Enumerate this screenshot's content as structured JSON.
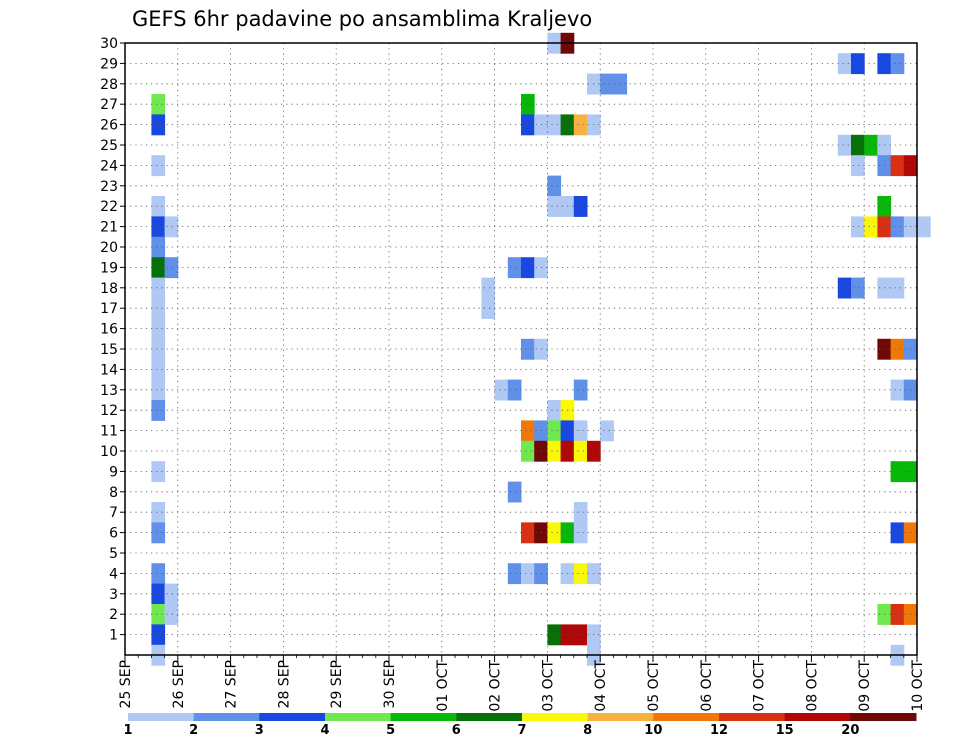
{
  "chart_data": {
    "type": "heatmap",
    "title": "GEFS 6hr padavine po ansamblima Kraljevo",
    "xlabel": "",
    "ylabel": "",
    "x_ticks": [
      "25 SEP",
      "26 SEP",
      "27 SEP",
      "28 SEP",
      "29 SEP",
      "30 SEP",
      "01 OCT",
      "02 OCT",
      "03 OCT",
      "04 OCT",
      "05 OCT",
      "06 OCT",
      "07 OCT",
      "08 OCT",
      "09 OCT",
      "10 OCT"
    ],
    "xlim_days": [
      0,
      15
    ],
    "ylim": [
      0,
      30
    ],
    "y_ticks": [
      1,
      2,
      3,
      4,
      5,
      6,
      7,
      8,
      9,
      10,
      11,
      12,
      13,
      14,
      15,
      16,
      17,
      18,
      19,
      20,
      21,
      22,
      23,
      24,
      25,
      26,
      27,
      28,
      29,
      30
    ],
    "time_step_hours": 6,
    "grid": true,
    "colorbar": {
      "labels": [
        "1",
        "2",
        "3",
        "4",
        "5",
        "6",
        "7",
        "8",
        "10",
        "12",
        "15",
        "20"
      ],
      "label_positions": [
        0,
        1,
        2,
        3,
        4,
        5,
        6,
        7,
        8,
        9,
        10,
        11
      ],
      "colors": [
        "#b0c8f4",
        "#6090e8",
        "#1848e0",
        "#70e850",
        "#08b808",
        "#087008",
        "#f8f808",
        "#f8b040",
        "#f07808",
        "#d83010",
        "#b00808",
        "#700808"
      ]
    },
    "cells_format": "member, step (6 h intervals from 25 SEP 00Z), class index into colorbar.colors",
    "cells": [
      [
        30,
        32,
        0
      ],
      [
        30,
        33,
        11
      ],
      [
        29,
        54,
        0
      ],
      [
        29,
        55,
        2
      ],
      [
        29,
        57,
        2
      ],
      [
        29,
        58,
        1
      ],
      [
        28,
        35,
        0
      ],
      [
        28,
        36,
        1
      ],
      [
        28,
        37,
        1
      ],
      [
        27,
        2,
        3
      ],
      [
        27,
        30,
        4
      ],
      [
        27,
        79,
        0
      ],
      [
        27,
        80,
        0
      ],
      [
        27,
        81,
        8
      ],
      [
        26,
        2,
        2
      ],
      [
        26,
        30,
        2
      ],
      [
        26,
        31,
        0
      ],
      [
        26,
        32,
        0
      ],
      [
        26,
        33,
        5
      ],
      [
        26,
        34,
        7
      ],
      [
        26,
        35,
        0
      ],
      [
        25,
        54,
        0
      ],
      [
        25,
        55,
        5
      ],
      [
        25,
        56,
        4
      ],
      [
        25,
        57,
        0
      ],
      [
        24,
        2,
        0
      ],
      [
        24,
        55,
        0
      ],
      [
        24,
        57,
        1
      ],
      [
        24,
        58,
        9
      ],
      [
        24,
        59,
        10
      ],
      [
        23,
        32,
        1
      ],
      [
        23,
        73,
        1
      ],
      [
        23,
        85,
        0
      ],
      [
        23,
        86,
        2
      ],
      [
        23,
        87,
        5
      ],
      [
        23,
        89,
        0
      ],
      [
        23,
        90,
        2
      ],
      [
        22,
        2,
        0
      ],
      [
        22,
        32,
        0
      ],
      [
        22,
        33,
        0
      ],
      [
        22,
        34,
        2
      ],
      [
        22,
        57,
        4
      ],
      [
        21,
        2,
        2
      ],
      [
        21,
        3,
        0
      ],
      [
        21,
        55,
        0
      ],
      [
        21,
        56,
        6
      ],
      [
        21,
        57,
        9
      ],
      [
        21,
        58,
        1
      ],
      [
        21,
        59,
        0
      ],
      [
        21,
        60,
        0
      ],
      [
        21,
        85,
        0
      ],
      [
        21,
        88,
        0
      ],
      [
        21,
        89,
        0
      ],
      [
        21,
        90,
        0
      ],
      [
        20,
        2,
        1
      ],
      [
        20,
        66,
        6
      ],
      [
        19,
        2,
        5
      ],
      [
        19,
        3,
        1
      ],
      [
        19,
        29,
        1
      ],
      [
        19,
        30,
        2
      ],
      [
        19,
        31,
        0
      ],
      [
        19,
        68,
        0
      ],
      [
        19,
        76,
        0
      ],
      [
        19,
        79,
        2
      ],
      [
        19,
        80,
        6
      ],
      [
        19,
        83,
        0
      ],
      [
        18,
        2,
        0
      ],
      [
        18,
        27,
        0
      ],
      [
        18,
        54,
        2
      ],
      [
        18,
        55,
        1
      ],
      [
        18,
        57,
        0
      ],
      [
        18,
        58,
        0
      ],
      [
        18,
        89,
        1
      ],
      [
        17,
        2,
        0
      ],
      [
        17,
        27,
        0
      ],
      [
        16,
        2,
        0
      ],
      [
        15,
        2,
        0
      ],
      [
        15,
        30,
        1
      ],
      [
        15,
        31,
        0
      ],
      [
        15,
        57,
        11
      ],
      [
        15,
        58,
        8
      ],
      [
        15,
        59,
        1
      ],
      [
        15,
        76,
        0
      ],
      [
        15,
        78,
        0
      ],
      [
        15,
        79,
        1
      ],
      [
        15,
        84,
        3
      ],
      [
        15,
        85,
        8
      ],
      [
        14,
        2,
        0
      ],
      [
        13,
        2,
        0
      ],
      [
        13,
        28,
        0
      ],
      [
        13,
        29,
        1
      ],
      [
        13,
        34,
        1
      ],
      [
        13,
        58,
        0
      ],
      [
        13,
        59,
        1
      ],
      [
        12,
        2,
        1
      ],
      [
        12,
        32,
        0
      ],
      [
        12,
        33,
        6
      ],
      [
        11,
        30,
        8
      ],
      [
        11,
        31,
        1
      ],
      [
        11,
        32,
        3
      ],
      [
        11,
        33,
        2
      ],
      [
        11,
        34,
        0
      ],
      [
        11,
        36,
        0
      ],
      [
        10,
        30,
        3
      ],
      [
        10,
        31,
        11
      ],
      [
        10,
        32,
        6
      ],
      [
        10,
        33,
        10
      ],
      [
        10,
        34,
        6
      ],
      [
        10,
        35,
        10
      ],
      [
        10,
        64,
        0
      ],
      [
        10,
        65,
        0
      ],
      [
        10,
        66,
        2
      ],
      [
        10,
        67,
        2
      ],
      [
        10,
        75,
        2
      ],
      [
        9,
        2,
        0
      ],
      [
        9,
        58,
        4
      ],
      [
        9,
        59,
        4
      ],
      [
        9,
        80,
        6
      ],
      [
        9,
        81,
        8
      ],
      [
        9,
        82,
        3
      ],
      [
        9,
        83,
        0
      ],
      [
        9,
        86,
        3
      ],
      [
        8,
        29,
        1
      ],
      [
        7,
        2,
        0
      ],
      [
        7,
        34,
        0
      ],
      [
        7,
        85,
        0
      ],
      [
        6,
        2,
        1
      ],
      [
        6,
        30,
        9
      ],
      [
        6,
        31,
        11
      ],
      [
        6,
        32,
        6
      ],
      [
        6,
        33,
        4
      ],
      [
        6,
        34,
        0
      ],
      [
        6,
        58,
        2
      ],
      [
        6,
        59,
        8
      ],
      [
        5,
        65,
        1
      ],
      [
        5,
        66,
        4
      ],
      [
        5,
        67,
        1
      ],
      [
        5,
        71,
        3
      ],
      [
        5,
        72,
        9
      ],
      [
        5,
        73,
        1
      ],
      [
        5,
        76,
        1
      ],
      [
        4,
        2,
        1
      ],
      [
        4,
        29,
        1
      ],
      [
        4,
        30,
        0
      ],
      [
        4,
        31,
        1
      ],
      [
        4,
        33,
        0
      ],
      [
        4,
        34,
        6
      ],
      [
        4,
        35,
        0
      ],
      [
        3,
        2,
        2
      ],
      [
        3,
        3,
        0
      ],
      [
        3,
        76,
        0
      ],
      [
        2,
        2,
        3
      ],
      [
        2,
        3,
        0
      ],
      [
        2,
        57,
        3
      ],
      [
        2,
        58,
        9
      ],
      [
        2,
        59,
        8
      ],
      [
        2,
        89,
        0
      ],
      [
        2,
        90,
        4
      ],
      [
        1,
        2,
        2
      ],
      [
        1,
        32,
        5
      ],
      [
        1,
        33,
        10
      ],
      [
        1,
        34,
        10
      ],
      [
        1,
        35,
        0
      ],
      [
        0,
        2,
        0
      ],
      [
        0,
        35,
        0
      ],
      [
        0,
        58,
        0
      ],
      [
        0,
        70,
        0
      ],
      [
        0,
        71,
        1
      ]
    ]
  }
}
